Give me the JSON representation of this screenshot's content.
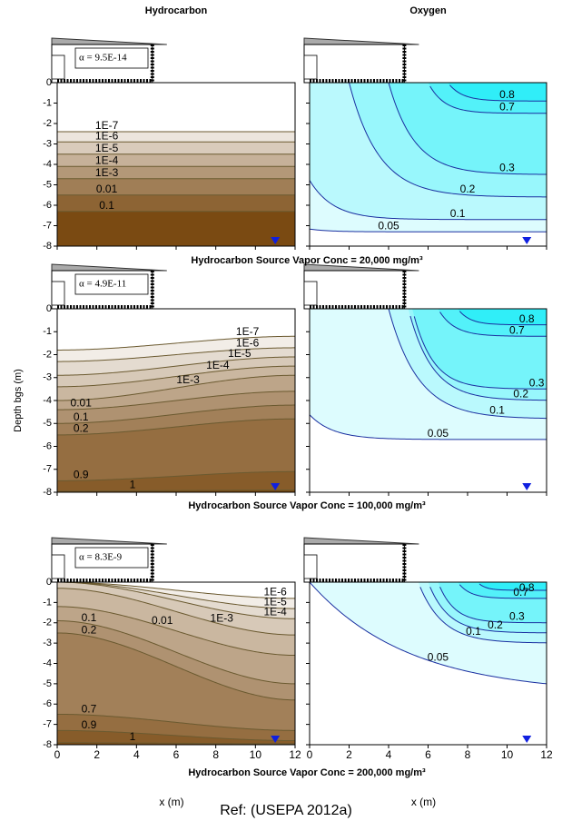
{
  "chart_data": [
    {
      "type": "contour",
      "title": "Hydrocarbon",
      "annotation": "α = 9.5E-14",
      "xlim": [
        0,
        12
      ],
      "ylim": [
        -8,
        0
      ],
      "xticks": [
        0,
        2,
        4,
        6,
        8,
        10,
        12
      ],
      "yticks": [
        0,
        -1,
        -2,
        -3,
        -4,
        -5,
        -6,
        -7,
        -8
      ],
      "xtick_labels": false,
      "ytick_labels": true,
      "colors": [
        "#ffffff",
        "#7a4a12"
      ],
      "line_color": "#6b5a30",
      "levels": [
        {
          "value": 1e-07,
          "label": "1E-7"
        },
        {
          "value": 1e-06,
          "label": "1E-6"
        },
        {
          "value": 1e-05,
          "label": "1E-5"
        },
        {
          "value": 0.0001,
          "label": "1E-4"
        },
        {
          "value": 0.001,
          "label": "1E-3"
        },
        0.01,
        0.1
      ]
    },
    {
      "type": "contour",
      "title": "Oxygen",
      "xlim": [
        0,
        12
      ],
      "ylim": [
        -8,
        0
      ],
      "xticks": [
        0,
        2,
        4,
        6,
        8,
        10,
        12
      ],
      "yticks": [
        0,
        -1,
        -2,
        -3,
        -4,
        -5,
        -6,
        -7,
        -8
      ],
      "xtick_labels": false,
      "ytick_labels": false,
      "colors": [
        "#ffffff",
        "#30eef8"
      ],
      "line_color": "#1a2fa0",
      "levels": [
        0.8,
        0.7,
        0.3,
        0.2,
        0.1,
        0.05
      ]
    },
    {
      "type": "contour",
      "ylabel": "Depth bgs (m)",
      "annotation": "α = 4.9E-11",
      "xlim": [
        0,
        12
      ],
      "ylim": [
        -8,
        0
      ],
      "xticks": [
        0,
        2,
        4,
        6,
        8,
        10,
        12
      ],
      "yticks": [
        0,
        -1,
        -2,
        -3,
        -4,
        -5,
        -6,
        -7,
        -8
      ],
      "xtick_labels": false,
      "ytick_labels": true,
      "colors": [
        "#ffffff",
        "#7a4a12"
      ],
      "line_color": "#6b5a30",
      "levels": [
        {
          "value": 1e-07,
          "label": "1E-7"
        },
        {
          "value": 1e-06,
          "label": "1E-6"
        },
        {
          "value": 1e-05,
          "label": "1E-5"
        },
        {
          "value": 0.0001,
          "label": "1E-4"
        },
        {
          "value": 0.001,
          "label": "1E-3"
        },
        0.01,
        0.1,
        0.2,
        0.9,
        1
      ]
    },
    {
      "type": "contour",
      "xlim": [
        0,
        12
      ],
      "ylim": [
        -8,
        0
      ],
      "xticks": [
        0,
        2,
        4,
        6,
        8,
        10,
        12
      ],
      "yticks": [
        0,
        -1,
        -2,
        -3,
        -4,
        -5,
        -6,
        -7,
        -8
      ],
      "xtick_labels": false,
      "ytick_labels": false,
      "colors": [
        "#ffffff",
        "#30eef8"
      ],
      "line_color": "#1a2fa0",
      "levels": [
        0.8,
        0.7,
        0.3,
        0.2,
        0.1,
        0.05
      ]
    },
    {
      "type": "contour",
      "xlabel": "x (m)",
      "annotation": "α = 8.3E-9",
      "xlim": [
        0,
        12
      ],
      "ylim": [
        -8,
        0
      ],
      "xticks": [
        0,
        2,
        4,
        6,
        8,
        10,
        12
      ],
      "yticks": [
        0,
        -1,
        -2,
        -3,
        -4,
        -5,
        -6,
        -7,
        -8
      ],
      "xtick_labels": true,
      "ytick_labels": true,
      "colors": [
        "#ffffff",
        "#7a4a12"
      ],
      "line_color": "#6b5a30",
      "levels": [
        {
          "value": 1e-06,
          "label": "1E-6"
        },
        {
          "value": 1e-05,
          "label": "1E-5"
        },
        {
          "value": 0.0001,
          "label": "1E-4"
        },
        {
          "value": 0.001,
          "label": "1E-3"
        },
        0.01,
        0.1,
        0.2,
        0.7,
        0.9,
        1
      ]
    },
    {
      "type": "contour",
      "xlabel": "x (m)",
      "xlim": [
        0,
        12
      ],
      "ylim": [
        -8,
        0
      ],
      "xticks": [
        0,
        2,
        4,
        6,
        8,
        10,
        12
      ],
      "yticks": [
        0,
        -1,
        -2,
        -3,
        -4,
        -5,
        -6,
        -7,
        -8
      ],
      "xtick_labels": true,
      "ytick_labels": false,
      "colors": [
        "#ffffff",
        "#30eef8"
      ],
      "line_color": "#1a2fa0",
      "levels": [
        0.8,
        0.7,
        0.3,
        0.2,
        0.1,
        0.05
      ]
    }
  ],
  "captions": [
    "Hydrocarbon Source Vapor Conc = 20,000 mg/m³",
    "Hydrocarbon Source Vapor Conc = 100,000 mg/m³",
    "Hydrocarbon Source Vapor Conc = 200,000 mg/m³"
  ],
  "reference": "Ref: (USEPA 2012a)"
}
